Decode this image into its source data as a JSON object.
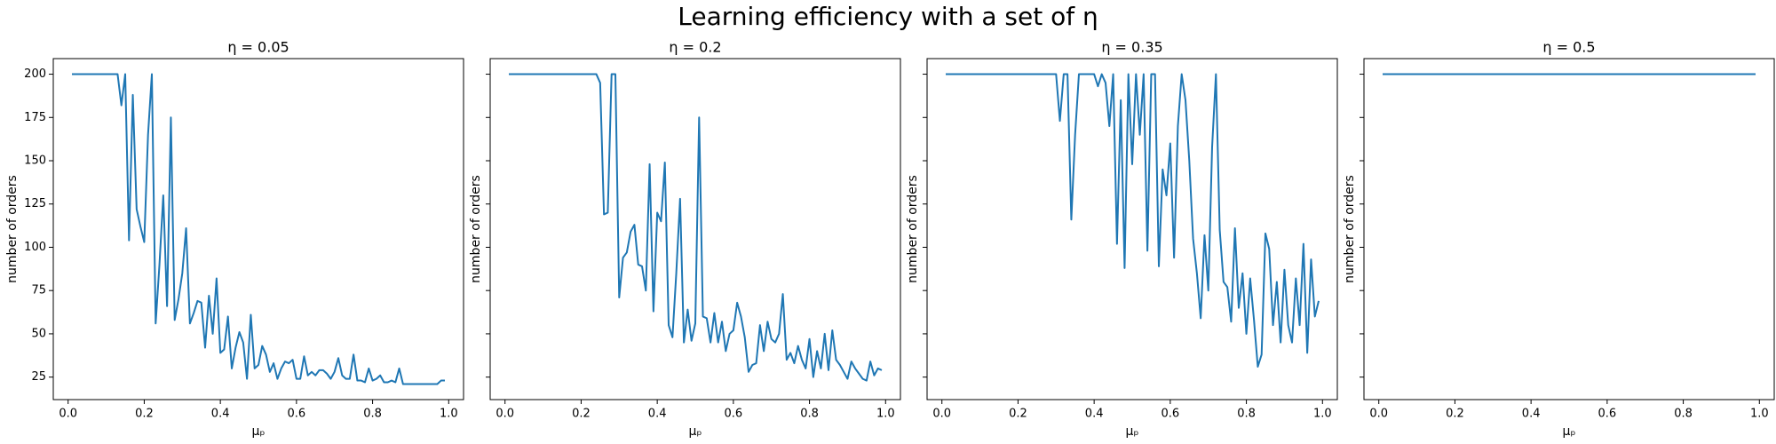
{
  "title": "Learning efficiency with a set of η",
  "chart_data": [
    {
      "type": "line",
      "title": "η = 0.05",
      "xlabel": "μₚ",
      "ylabel": "number of orders",
      "color": "#1f77b4",
      "x": [
        0.01,
        0.02,
        0.03,
        0.04,
        0.05,
        0.06,
        0.07,
        0.08,
        0.09,
        0.1,
        0.11,
        0.12,
        0.13,
        0.14,
        0.15,
        0.16,
        0.17,
        0.18,
        0.19,
        0.2,
        0.21,
        0.22,
        0.23,
        0.24,
        0.25,
        0.26,
        0.27,
        0.28,
        0.29,
        0.3,
        0.31,
        0.32,
        0.33,
        0.34,
        0.35,
        0.36,
        0.37,
        0.38,
        0.39,
        0.4,
        0.41,
        0.42,
        0.43,
        0.44,
        0.45,
        0.46,
        0.47,
        0.48,
        0.49,
        0.5,
        0.51,
        0.52,
        0.53,
        0.54,
        0.55,
        0.56,
        0.57,
        0.58,
        0.59,
        0.6,
        0.61,
        0.62,
        0.63,
        0.64,
        0.65,
        0.66,
        0.67,
        0.68,
        0.69,
        0.7,
        0.71,
        0.72,
        0.73,
        0.74,
        0.75,
        0.76,
        0.77,
        0.78,
        0.79,
        0.8,
        0.81,
        0.82,
        0.83,
        0.84,
        0.85,
        0.86,
        0.87,
        0.88,
        0.89,
        0.9,
        0.91,
        0.92,
        0.93,
        0.94,
        0.95,
        0.96,
        0.97,
        0.98,
        0.99
      ],
      "values": [
        200,
        200,
        200,
        200,
        200,
        200,
        200,
        200,
        200,
        200,
        200,
        200,
        200,
        182,
        200,
        104,
        188,
        122,
        112,
        103,
        165,
        200,
        56,
        90,
        130,
        66,
        175,
        58,
        70,
        85,
        111,
        56,
        62,
        69,
        68,
        42,
        72,
        50,
        82,
        39,
        41,
        60,
        30,
        42,
        51,
        45,
        24,
        61,
        30,
        32,
        43,
        38,
        28,
        33,
        24,
        30,
        34,
        33,
        35,
        24,
        24,
        37,
        26,
        28,
        26,
        29,
        29,
        27,
        24,
        28,
        36,
        26,
        24,
        24,
        38,
        23,
        23,
        22,
        30,
        23,
        24,
        26,
        22,
        22,
        23,
        22,
        30,
        21,
        21,
        21,
        21,
        21,
        21,
        21,
        21,
        21,
        21,
        23,
        23
      ],
      "xlim": [
        -0.039,
        1.039
      ],
      "xticks": [
        {
          "value": 0,
          "label": "0.0"
        },
        0.2,
        0.4,
        0.6,
        0.8,
        {
          "value": 1,
          "label": "1.0"
        }
      ],
      "ylim": [
        12,
        209
      ],
      "yticks": [
        25,
        50,
        75,
        100,
        125,
        150,
        175,
        200
      ],
      "show_ytick_labels": true
    },
    {
      "type": "line",
      "title": "η = 0.2",
      "xlabel": "μₚ",
      "ylabel": "number of orders",
      "color": "#1f77b4",
      "x": [
        0.01,
        0.02,
        0.03,
        0.04,
        0.05,
        0.06,
        0.07,
        0.08,
        0.09,
        0.1,
        0.11,
        0.12,
        0.13,
        0.14,
        0.15,
        0.16,
        0.17,
        0.18,
        0.19,
        0.2,
        0.21,
        0.22,
        0.23,
        0.24,
        0.25,
        0.26,
        0.27,
        0.28,
        0.29,
        0.3,
        0.31,
        0.32,
        0.33,
        0.34,
        0.35,
        0.36,
        0.37,
        0.38,
        0.39,
        0.4,
        0.41,
        0.42,
        0.43,
        0.44,
        0.45,
        0.46,
        0.47,
        0.48,
        0.49,
        0.5,
        0.51,
        0.52,
        0.53,
        0.54,
        0.55,
        0.56,
        0.57,
        0.58,
        0.59,
        0.6,
        0.61,
        0.62,
        0.63,
        0.64,
        0.65,
        0.66,
        0.67,
        0.68,
        0.69,
        0.7,
        0.71,
        0.72,
        0.73,
        0.74,
        0.75,
        0.76,
        0.77,
        0.78,
        0.79,
        0.8,
        0.81,
        0.82,
        0.83,
        0.84,
        0.85,
        0.86,
        0.87,
        0.88,
        0.89,
        0.9,
        0.91,
        0.92,
        0.93,
        0.94,
        0.95,
        0.96,
        0.97,
        0.98,
        0.99
      ],
      "values": [
        200,
        200,
        200,
        200,
        200,
        200,
        200,
        200,
        200,
        200,
        200,
        200,
        200,
        200,
        200,
        200,
        200,
        200,
        200,
        200,
        200,
        200,
        200,
        200,
        195,
        119,
        120,
        200,
        200,
        71,
        94,
        97,
        109,
        113,
        90,
        89,
        75,
        148,
        63,
        120,
        115,
        149,
        55,
        48,
        85,
        128,
        45,
        64,
        46,
        56,
        175,
        60,
        59,
        45,
        62,
        45,
        57,
        40,
        50,
        52,
        68,
        60,
        48,
        28,
        32,
        33,
        55,
        40,
        57,
        47,
        45,
        50,
        73,
        35,
        39,
        33,
        43,
        35,
        30,
        47,
        25,
        40,
        30,
        50,
        29,
        52,
        35,
        32,
        28,
        24,
        34,
        30,
        27,
        24,
        23,
        34,
        26,
        30,
        29
      ],
      "xlim": [
        -0.039,
        1.039
      ],
      "xticks": [
        {
          "value": 0,
          "label": "0.0"
        },
        0.2,
        0.4,
        0.6,
        0.8,
        {
          "value": 1,
          "label": "1.0"
        }
      ],
      "ylim": [
        12,
        209
      ],
      "yticks": [
        25,
        50,
        75,
        100,
        125,
        150,
        175,
        200
      ],
      "show_ytick_labels": false
    },
    {
      "type": "line",
      "title": "η = 0.35",
      "xlabel": "μₚ",
      "ylabel": "number of orders",
      "color": "#1f77b4",
      "x": [
        0.01,
        0.02,
        0.03,
        0.04,
        0.05,
        0.06,
        0.07,
        0.08,
        0.09,
        0.1,
        0.11,
        0.12,
        0.13,
        0.14,
        0.15,
        0.16,
        0.17,
        0.18,
        0.19,
        0.2,
        0.21,
        0.22,
        0.23,
        0.24,
        0.25,
        0.26,
        0.27,
        0.28,
        0.29,
        0.3,
        0.31,
        0.32,
        0.33,
        0.34,
        0.35,
        0.36,
        0.37,
        0.38,
        0.39,
        0.4,
        0.41,
        0.42,
        0.43,
        0.44,
        0.45,
        0.46,
        0.47,
        0.48,
        0.49,
        0.5,
        0.51,
        0.52,
        0.53,
        0.54,
        0.55,
        0.56,
        0.57,
        0.58,
        0.59,
        0.6,
        0.61,
        0.62,
        0.63,
        0.64,
        0.65,
        0.66,
        0.67,
        0.68,
        0.69,
        0.7,
        0.71,
        0.72,
        0.73,
        0.74,
        0.75,
        0.76,
        0.77,
        0.78,
        0.79,
        0.8,
        0.81,
        0.82,
        0.83,
        0.84,
        0.85,
        0.86,
        0.87,
        0.88,
        0.89,
        0.9,
        0.91,
        0.92,
        0.93,
        0.94,
        0.95,
        0.96,
        0.97,
        0.98,
        0.99
      ],
      "values": [
        200,
        200,
        200,
        200,
        200,
        200,
        200,
        200,
        200,
        200,
        200,
        200,
        200,
        200,
        200,
        200,
        200,
        200,
        200,
        200,
        200,
        200,
        200,
        200,
        200,
        200,
        200,
        200,
        200,
        200,
        173,
        200,
        200,
        116,
        165,
        200,
        200,
        200,
        200,
        200,
        193,
        200,
        195,
        170,
        200,
        102,
        185,
        88,
        200,
        148,
        200,
        165,
        200,
        98,
        200,
        200,
        89,
        145,
        130,
        160,
        94,
        170,
        200,
        185,
        150,
        105,
        85,
        59,
        107,
        75,
        158,
        200,
        110,
        80,
        77,
        57,
        111,
        65,
        85,
        50,
        82,
        58,
        31,
        38,
        108,
        99,
        55,
        80,
        45,
        87,
        55,
        45,
        82,
        55,
        102,
        39,
        93,
        60,
        69
      ],
      "xlim": [
        -0.039,
        1.039
      ],
      "xticks": [
        {
          "value": 0,
          "label": "0.0"
        },
        0.2,
        0.4,
        0.6,
        0.8,
        {
          "value": 1,
          "label": "1.0"
        }
      ],
      "ylim": [
        12,
        209
      ],
      "yticks": [
        25,
        50,
        75,
        100,
        125,
        150,
        175,
        200
      ],
      "show_ytick_labels": false
    },
    {
      "type": "line",
      "title": "η = 0.5",
      "xlabel": "μₚ",
      "ylabel": "number of orders",
      "color": "#1f77b4",
      "x": [
        0.01,
        0.02,
        0.03,
        0.04,
        0.05,
        0.06,
        0.07,
        0.08,
        0.09,
        0.1,
        0.11,
        0.12,
        0.13,
        0.14,
        0.15,
        0.16,
        0.17,
        0.18,
        0.19,
        0.2,
        0.21,
        0.22,
        0.23,
        0.24,
        0.25,
        0.26,
        0.27,
        0.28,
        0.29,
        0.3,
        0.31,
        0.32,
        0.33,
        0.34,
        0.35,
        0.36,
        0.37,
        0.38,
        0.39,
        0.4,
        0.41,
        0.42,
        0.43,
        0.44,
        0.45,
        0.46,
        0.47,
        0.48,
        0.49,
        0.5,
        0.51,
        0.52,
        0.53,
        0.54,
        0.55,
        0.56,
        0.57,
        0.58,
        0.59,
        0.6,
        0.61,
        0.62,
        0.63,
        0.64,
        0.65,
        0.66,
        0.67,
        0.68,
        0.69,
        0.7,
        0.71,
        0.72,
        0.73,
        0.74,
        0.75,
        0.76,
        0.77,
        0.78,
        0.79,
        0.8,
        0.81,
        0.82,
        0.83,
        0.84,
        0.85,
        0.86,
        0.87,
        0.88,
        0.89,
        0.9,
        0.91,
        0.92,
        0.93,
        0.94,
        0.95,
        0.96,
        0.97,
        0.98,
        0.99
      ],
      "values": [
        200,
        200,
        200,
        200,
        200,
        200,
        200,
        200,
        200,
        200,
        200,
        200,
        200,
        200,
        200,
        200,
        200,
        200,
        200,
        200,
        200,
        200,
        200,
        200,
        200,
        200,
        200,
        200,
        200,
        200,
        200,
        200,
        200,
        200,
        200,
        200,
        200,
        200,
        200,
        200,
        200,
        200,
        200,
        200,
        200,
        200,
        200,
        200,
        200,
        200,
        200,
        200,
        200,
        200,
        200,
        200,
        200,
        200,
        200,
        200,
        200,
        200,
        200,
        200,
        200,
        200,
        200,
        200,
        200,
        200,
        200,
        200,
        200,
        200,
        200,
        200,
        200,
        200,
        200,
        200,
        200,
        200,
        200,
        200,
        200,
        200,
        200,
        200,
        200,
        200,
        200,
        200,
        200,
        200,
        200,
        200,
        200,
        200,
        200
      ],
      "xlim": [
        -0.039,
        1.039
      ],
      "xticks": [
        {
          "value": 0,
          "label": "0.0"
        },
        0.2,
        0.4,
        0.6,
        0.8,
        {
          "value": 1,
          "label": "1.0"
        }
      ],
      "ylim": [
        12,
        209
      ],
      "yticks": [
        25,
        50,
        75,
        100,
        125,
        150,
        175,
        200
      ],
      "show_ytick_labels": false
    }
  ]
}
